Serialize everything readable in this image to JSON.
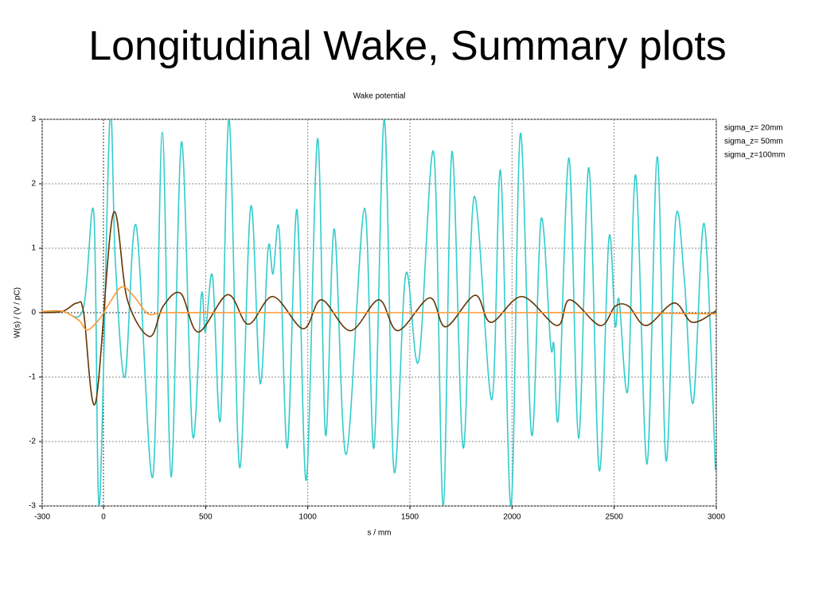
{
  "header": {
    "title": "Longitudinal Wake, Summary plots"
  },
  "chart_data": {
    "type": "line",
    "title": "Wake potential",
    "xlabel": "s / mm",
    "ylabel": "W(s) / (V / pC)",
    "xlim": [
      -300,
      3000
    ],
    "xticks": [
      -300,
      0,
      500,
      1000,
      1500,
      2000,
      2500,
      3000
    ],
    "ylim": [
      -3,
      3
    ],
    "yticks": [
      -3,
      -2,
      -1,
      0,
      1,
      2,
      3
    ],
    "grid": true,
    "legend": "upper right",
    "series": [
      {
        "name": "sigma_z= 20mm",
        "color": "#33cccc",
        "x": [
          -300,
          -200,
          -100,
          -47,
          -20,
          31,
          58,
          105,
          160,
          241,
          288,
          331,
          382,
          436,
          479,
          499,
          534,
          573,
          615,
          666,
          721,
          767,
          806,
          830,
          861,
          900,
          947,
          993,
          1048,
          1087,
          1130,
          1188,
          1278,
          1324,
          1375,
          1422,
          1480,
          1543,
          1617,
          1663,
          1706,
          1761,
          1815,
          1901,
          1944,
          1995,
          2041,
          2096,
          2142,
          2189,
          2205,
          2228,
          2279,
          2326,
          2376,
          2427,
          2474,
          2505,
          2524,
          2567,
          2606,
          2661,
          2711,
          2754,
          2801,
          2844,
          2887,
          2941,
          2996
        ],
        "values": [
          0.02,
          0.02,
          0.05,
          1.53,
          -3,
          3,
          0.8,
          -1.0,
          1.35,
          -2.55,
          2.8,
          -2.55,
          2.65,
          -1.9,
          0.27,
          -0.3,
          0.57,
          -1.65,
          3,
          -2.4,
          1.65,
          -1.1,
          1.0,
          0.6,
          1.25,
          -2.1,
          1.6,
          -2.6,
          2.7,
          -1.9,
          1.3,
          -2.2,
          1.62,
          -2.1,
          3,
          -2.45,
          0.6,
          -0.75,
          2.48,
          -3,
          2.5,
          -2.1,
          1.8,
          -1.35,
          2.2,
          -3,
          2.78,
          -1.9,
          1.45,
          -0.5,
          -0.5,
          -1.6,
          2.4,
          -1.95,
          2.25,
          -2.45,
          1.15,
          -0.2,
          0.2,
          -1.2,
          2.13,
          -2.35,
          2.42,
          -2.3,
          1.45,
          0.5,
          -1.4,
          1.38,
          -2.45
        ]
      },
      {
        "name": "sigma_z= 50mm",
        "color": "#663300",
        "x": [
          -300,
          -200,
          -129,
          -97,
          -39,
          47,
          117,
          226,
          292,
          378,
          464,
          608,
          709,
          830,
          978,
          1067,
          1208,
          1348,
          1441,
          1597,
          1675,
          1819,
          1897,
          2049,
          2220,
          2283,
          2431,
          2505,
          2571,
          2657,
          2793,
          2883,
          3000
        ],
        "values": [
          0,
          0.02,
          0.15,
          0,
          -1.4,
          1.53,
          0.2,
          -0.37,
          0.1,
          0.3,
          -0.3,
          0.28,
          -0.18,
          0.25,
          -0.25,
          0.2,
          -0.28,
          0.2,
          -0.28,
          0.23,
          -0.22,
          0.27,
          -0.15,
          0.25,
          -0.2,
          0.2,
          -0.2,
          0.1,
          0.1,
          -0.2,
          0.15,
          -0.15,
          0.03
        ]
      },
      {
        "name": "sigma_z=100mm",
        "color": "#ff9933",
        "x": [
          -300,
          -200,
          -120,
          -80,
          -20,
          30,
          90,
          150,
          220,
          300,
          600,
          1000,
          1500,
          2000,
          2500,
          3000
        ],
        "values": [
          0.02,
          0.02,
          -0.12,
          -0.27,
          -0.1,
          0.15,
          0.4,
          0.25,
          -0.02,
          0,
          0,
          0,
          0,
          0,
          0,
          -0.02
        ]
      }
    ]
  }
}
